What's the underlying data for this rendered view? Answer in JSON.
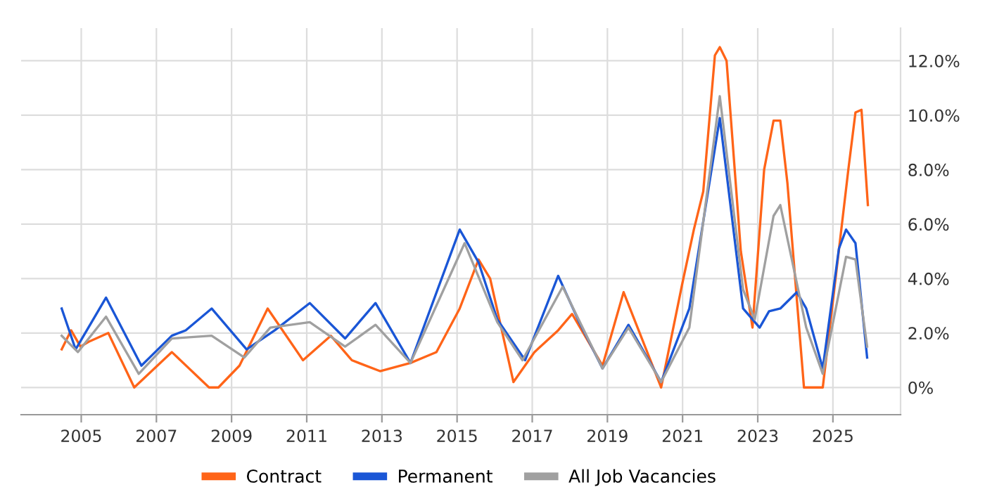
{
  "chart_data": {
    "type": "line",
    "series": [
      {
        "name": "Contract",
        "color": "#ff6418",
        "x": [
          2004.48,
          2004.73,
          2004.98,
          2005.23,
          2005.72,
          2006.41,
          2007.41,
          2008.4,
          2008.65,
          2009.21,
          2009.96,
          2010.9,
          2011.64,
          2012.2,
          2012.95,
          2013.76,
          2014.45,
          2015.07,
          2015.57,
          2015.88,
          2016.5,
          2017.06,
          2017.69,
          2018.06,
          2018.87,
          2019.43,
          2020.43,
          2020.99,
          2021.3,
          2021.55,
          2021.86,
          2021.99,
          2022.17,
          2022.55,
          2022.86,
          2023.17,
          2023.42,
          2023.6,
          2023.79,
          2024.23,
          2024.73,
          2025.41,
          2025.6,
          2025.76,
          2025.93
        ],
        "values": [
          1.4,
          2.1,
          1.5,
          1.7,
          2.0,
          0.0,
          1.3,
          0.0,
          0.0,
          0.8,
          2.9,
          1.0,
          1.9,
          1.0,
          0.6,
          0.9,
          1.3,
          2.9,
          4.7,
          4.0,
          0.2,
          1.3,
          2.1,
          2.7,
          0.8,
          3.5,
          0.0,
          3.8,
          5.8,
          7.2,
          12.2,
          12.5,
          12.0,
          5.0,
          2.2,
          8.0,
          9.8,
          9.8,
          7.5,
          0.0,
          0.0,
          8.0,
          10.1,
          10.2,
          6.7
        ]
      },
      {
        "name": "Permanent",
        "color": "#1a56d6",
        "x": [
          2004.48,
          2004.85,
          2005.66,
          2006.6,
          2007.41,
          2007.78,
          2008.47,
          2009.4,
          2010.15,
          2011.08,
          2012.02,
          2012.83,
          2013.76,
          2015.07,
          2015.57,
          2016.07,
          2016.81,
          2017.69,
          2018.25,
          2018.87,
          2019.56,
          2020.43,
          2021.18,
          2021.99,
          2022.61,
          2023.05,
          2023.3,
          2023.6,
          2024.04,
          2024.29,
          2024.73,
          2025.16,
          2025.35,
          2025.6,
          2025.91
        ],
        "values": [
          2.9,
          1.4,
          3.3,
          0.8,
          1.9,
          2.1,
          2.9,
          1.4,
          2.1,
          3.1,
          1.8,
          3.1,
          0.9,
          5.8,
          4.6,
          2.5,
          1.0,
          4.1,
          2.4,
          0.7,
          2.3,
          0.2,
          2.9,
          9.9,
          2.9,
          2.2,
          2.8,
          2.9,
          3.5,
          2.9,
          0.7,
          5.1,
          5.8,
          5.3,
          1.1
        ]
      },
      {
        "name": "All Job Vacancies",
        "color": "#a0a0a0",
        "x": [
          2004.48,
          2004.91,
          2005.66,
          2006.53,
          2007.41,
          2008.47,
          2009.34,
          2010.03,
          2011.08,
          2012.02,
          2012.83,
          2013.76,
          2015.2,
          2016.07,
          2016.74,
          2017.81,
          2018.87,
          2019.56,
          2020.43,
          2021.18,
          2021.99,
          2022.61,
          2022.92,
          2023.42,
          2023.6,
          2024.29,
          2024.73,
          2025.35,
          2025.6,
          2025.91
        ],
        "values": [
          1.9,
          1.3,
          2.6,
          0.5,
          1.8,
          1.9,
          1.1,
          2.2,
          2.4,
          1.5,
          2.3,
          0.9,
          5.3,
          2.4,
          1.0,
          3.7,
          0.7,
          2.2,
          0.2,
          2.2,
          10.7,
          3.6,
          2.5,
          6.3,
          6.7,
          2.2,
          0.5,
          4.8,
          4.7,
          1.5
        ]
      }
    ],
    "xlim": [
      2003.4,
      2026.8
    ],
    "xticks": [
      {
        "value": 2005,
        "label": "2005"
      },
      {
        "value": 2007,
        "label": "2007"
      },
      {
        "value": 2009,
        "label": "2009"
      },
      {
        "value": 2011,
        "label": "2011"
      },
      {
        "value": 2013,
        "label": "2013"
      },
      {
        "value": 2015,
        "label": "2015"
      },
      {
        "value": 2017,
        "label": "2017"
      },
      {
        "value": 2019,
        "label": "2019"
      },
      {
        "value": 2021,
        "label": "2021"
      },
      {
        "value": 2023,
        "label": "2023"
      },
      {
        "value": 2025,
        "label": "2025"
      }
    ],
    "ylim": [
      -1.0,
      13.2
    ],
    "yticks": [
      {
        "value": 0,
        "label": "0%"
      },
      {
        "value": 2,
        "label": "2.0%"
      },
      {
        "value": 4,
        "label": "4.0%"
      },
      {
        "value": 6,
        "label": "6.0%"
      },
      {
        "value": 8,
        "label": "8.0%"
      },
      {
        "value": 10,
        "label": "10.0%"
      },
      {
        "value": 12,
        "label": "12.0%"
      }
    ],
    "grid": true,
    "legend": "bottom",
    "marker": "none",
    "line_style": "solid"
  }
}
